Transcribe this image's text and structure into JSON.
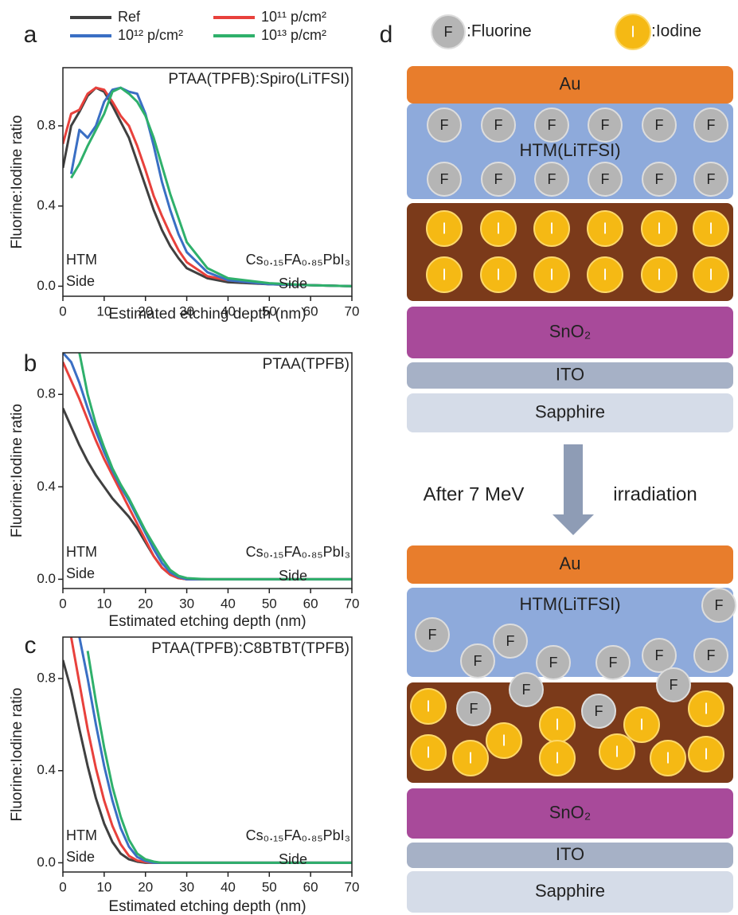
{
  "chart_data": [
    {
      "type": "line",
      "panel_label": "a",
      "title": "PTAA(TPFB):Spiro(LiTFSI)",
      "xlabel": "Estimated etching depth (nm)",
      "ylabel": "Fluorine:Iodine ratio",
      "annotations": [
        "HTM",
        "Side",
        "Cs₀.₁₅FA₀.₈₅PbI₃",
        "Side"
      ],
      "legend": "top",
      "x": [
        0,
        2,
        4,
        6,
        8,
        10,
        12,
        14,
        16,
        18,
        20,
        22,
        24,
        26,
        28,
        30,
        35,
        40,
        50,
        60,
        70
      ],
      "series": [
        {
          "name": "Ref",
          "color": "#404040",
          "values": [
            0.59,
            0.8,
            0.87,
            0.95,
            0.99,
            0.97,
            0.9,
            0.82,
            0.74,
            0.62,
            0.5,
            0.38,
            0.28,
            0.2,
            0.14,
            0.09,
            0.04,
            0.02,
            0.01,
            0.005,
            0
          ]
        },
        {
          "name": "10¹¹ p/cm²",
          "color": "#e8413c",
          "values": [
            0.71,
            0.86,
            0.88,
            0.96,
            0.99,
            0.98,
            0.92,
            0.85,
            0.8,
            0.7,
            0.58,
            0.45,
            0.35,
            0.26,
            0.18,
            0.12,
            0.05,
            0.03,
            0.01,
            0.005,
            0
          ]
        },
        {
          "name": "10¹² p/cm²",
          "color": "#3a6fc4",
          "values": [
            null,
            0.56,
            0.78,
            0.74,
            0.8,
            0.92,
            0.98,
            0.99,
            0.97,
            0.96,
            0.86,
            0.7,
            0.52,
            0.38,
            0.26,
            0.17,
            0.07,
            0.03,
            0.01,
            0.005,
            0
          ]
        },
        {
          "name": "10¹³ p/cm²",
          "color": "#2fb06b",
          "values": [
            null,
            0.54,
            0.61,
            0.7,
            0.78,
            0.86,
            0.97,
            0.99,
            0.96,
            0.92,
            0.85,
            0.74,
            0.6,
            0.46,
            0.34,
            0.22,
            0.09,
            0.04,
            0.015,
            0.005,
            0
          ]
        }
      ],
      "xlim": [
        0,
        70
      ],
      "xticks": [
        0,
        10,
        20,
        30,
        40,
        50,
        60,
        70
      ],
      "ylim": [
        -0.05,
        1.09
      ],
      "yticks": [
        {
          "value": 0,
          "label": "0.0"
        },
        0.4,
        0.8
      ]
    },
    {
      "type": "line",
      "panel_label": "b",
      "title": "PTAA(TPFB)",
      "xlabel": "Estimated etching depth (nm)",
      "ylabel": "Fluorine:Iodine ratio",
      "annotations": [
        "HTM",
        "Side",
        "Cs₀.₁₅FA₀.₈₅PbI₃",
        "Side"
      ],
      "x": [
        0,
        2,
        4,
        6,
        8,
        10,
        12,
        14,
        16,
        18,
        20,
        22,
        24,
        26,
        28,
        30,
        35,
        40,
        50,
        60,
        70
      ],
      "series": [
        {
          "name": "Ref",
          "color": "#404040",
          "values": [
            0.74,
            0.66,
            0.58,
            0.51,
            0.45,
            0.4,
            0.35,
            0.31,
            0.27,
            0.22,
            0.16,
            0.1,
            0.05,
            0.02,
            0.005,
            0,
            0,
            0,
            0,
            0,
            0
          ]
        },
        {
          "name": "10¹¹ p/cm²",
          "color": "#e8413c",
          "values": [
            0.94,
            0.86,
            0.78,
            0.69,
            0.6,
            0.52,
            0.45,
            0.38,
            0.31,
            0.24,
            0.17,
            0.1,
            0.05,
            0.02,
            0.005,
            0,
            0,
            0,
            0,
            0,
            0
          ]
        },
        {
          "name": "10¹² p/cm²",
          "color": "#3a6fc4",
          "values": [
            0.98,
            0.94,
            0.85,
            0.74,
            0.64,
            0.55,
            0.47,
            0.4,
            0.34,
            0.27,
            0.2,
            0.13,
            0.07,
            0.03,
            0.01,
            0,
            0,
            0,
            0,
            0,
            0
          ]
        },
        {
          "name": "10¹³ p/cm²",
          "color": "#2fb06b",
          "values": [
            null,
            null,
            0.98,
            0.8,
            0.67,
            0.57,
            0.48,
            0.41,
            0.35,
            0.28,
            0.21,
            0.15,
            0.09,
            0.04,
            0.015,
            0.005,
            0,
            0,
            0,
            0,
            0
          ]
        }
      ],
      "xlim": [
        0,
        70
      ],
      "xticks": [
        0,
        10,
        20,
        30,
        40,
        50,
        60,
        70
      ],
      "ylim": [
        -0.04,
        0.98
      ],
      "yticks": [
        {
          "value": 0,
          "label": "0.0"
        },
        0.4,
        0.8
      ]
    },
    {
      "type": "line",
      "panel_label": "c",
      "title": "PTAA(TPFB):C8BTBT(TPFB)",
      "xlabel": "Estimated etching depth (nm)",
      "ylabel": "Fluorine:Iodine ratio",
      "annotations": [
        "HTM",
        "Side",
        "Cs₀.₁₅FA₀.₈₅PbI₃",
        "Side"
      ],
      "x": [
        0,
        2,
        4,
        6,
        8,
        10,
        12,
        14,
        16,
        18,
        20,
        22,
        24,
        26,
        28,
        30,
        35,
        40,
        50,
        60,
        70
      ],
      "series": [
        {
          "name": "Ref",
          "color": "#404040",
          "values": [
            0.88,
            0.75,
            0.58,
            0.42,
            0.28,
            0.17,
            0.09,
            0.04,
            0.015,
            0.005,
            0,
            0,
            0,
            0,
            0,
            0,
            0,
            0,
            0,
            0,
            0
          ]
        },
        {
          "name": "10¹¹ p/cm²",
          "color": "#e8413c",
          "values": [
            null,
            0.98,
            0.78,
            0.58,
            0.41,
            0.27,
            0.16,
            0.08,
            0.03,
            0.01,
            0.003,
            0,
            0,
            0,
            0,
            0,
            0,
            0,
            0,
            0,
            0
          ]
        },
        {
          "name": "10¹² p/cm²",
          "color": "#3a6fc4",
          "values": [
            null,
            null,
            0.98,
            0.8,
            0.6,
            0.42,
            0.27,
            0.15,
            0.07,
            0.025,
            0.008,
            0,
            0,
            0,
            0,
            0,
            0,
            0,
            0,
            0,
            0
          ]
        },
        {
          "name": "10¹³ p/cm²",
          "color": "#2fb06b",
          "values": [
            null,
            null,
            null,
            0.92,
            0.7,
            0.5,
            0.33,
            0.2,
            0.1,
            0.04,
            0.015,
            0.005,
            0,
            0,
            0,
            0,
            0,
            0,
            0,
            0,
            0
          ]
        }
      ],
      "xlim": [
        0,
        70
      ],
      "xticks": [
        0,
        10,
        20,
        30,
        40,
        50,
        60,
        70
      ],
      "ylim": [
        -0.04,
        0.98
      ],
      "yticks": [
        {
          "value": 0,
          "label": "0.0"
        },
        0.4,
        0.8
      ]
    }
  ],
  "diagram": {
    "panel_label": "d",
    "legend": {
      "fluorine_symbol": "F",
      "fluorine_label": ":Fluorine",
      "iodine_symbol": "I",
      "iodine_label": ":Iodine"
    },
    "before": {
      "au": "Au",
      "htm": "HTM(LiTFSI)",
      "sno2": "SnO₂",
      "ito": "ITO",
      "sapphire": "Sapphire"
    },
    "arrow": {
      "left": "After 7 MeV",
      "right": "irradiation"
    },
    "after": {
      "au": "Au",
      "htm": "HTM(LiTFSI)",
      "sno2": "SnO₂",
      "ito": "ITO",
      "sapphire": "Sapphire"
    }
  }
}
